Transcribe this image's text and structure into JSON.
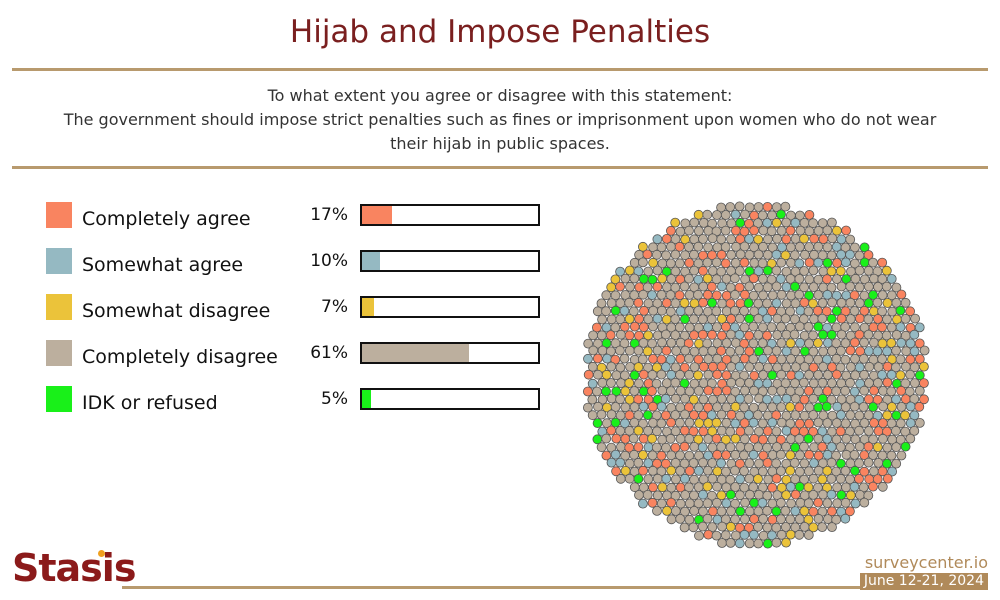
{
  "header": {
    "title": "Hijab and Impose Penalties",
    "question_line1": "To what extent you agree or disagree with this statement:",
    "question_line2": "The government should impose strict penalties such as fines or imprisonment upon women who do not wear",
    "question_line3": "their hijab in public spaces."
  },
  "chart_data": {
    "type": "bar",
    "orientation": "horizontal",
    "categories": [
      "Completely agree",
      "Somewhat agree",
      "Somewhat disagree",
      "Completely disagree",
      "IDK or refused"
    ],
    "values": [
      17,
      10,
      7,
      61,
      5
    ],
    "value_labels": [
      "17%",
      "10%",
      "7%",
      "61%",
      "5%"
    ],
    "colors": [
      "#f98460",
      "#95b9c2",
      "#ebc33a",
      "#bcaf9e",
      "#19f019"
    ],
    "xlim": [
      0,
      100
    ],
    "unit": "%",
    "title": "",
    "xlabel": "",
    "ylabel": ""
  },
  "footer": {
    "logo": "Stasis",
    "site": "surveycenter.io",
    "date": "June 12-21, 2024"
  }
}
